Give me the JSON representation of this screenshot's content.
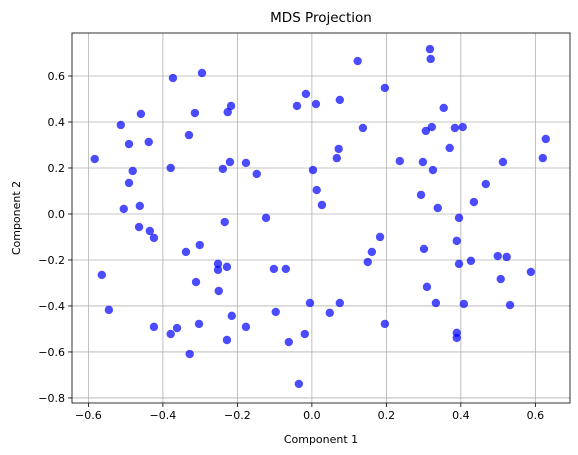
{
  "chart_data": {
    "type": "scatter",
    "title": "MDS Projection",
    "x_label": "Component 1",
    "y_label": "Component 2",
    "color": "#0000ff",
    "alpha": 0.7,
    "grid": true,
    "xlim": [
      -0.644,
      0.693
    ],
    "ylim": [
      -0.822,
      0.787
    ],
    "xticks": [
      {
        "value": -0.6,
        "label": "−0.6"
      },
      {
        "value": -0.4,
        "label": "−0.4"
      },
      {
        "value": -0.2,
        "label": "−0.2"
      },
      {
        "value": 0.0,
        "label": "0.0"
      },
      {
        "value": 0.2,
        "label": "0.2"
      },
      {
        "value": 0.4,
        "label": "0.4"
      },
      {
        "value": 0.6,
        "label": "0.6"
      }
    ],
    "yticks": [
      {
        "value": -0.8,
        "label": "−0.8"
      },
      {
        "value": -0.6,
        "label": "−0.6"
      },
      {
        "value": -0.4,
        "label": "−0.4"
      },
      {
        "value": -0.2,
        "label": "−0.2"
      },
      {
        "value": 0.0,
        "label": "0.0"
      },
      {
        "value": 0.2,
        "label": "0.2"
      },
      {
        "value": 0.4,
        "label": "0.4"
      },
      {
        "value": 0.6,
        "label": "0.6"
      }
    ],
    "x": [
      -0.583,
      -0.564,
      -0.545,
      -0.513,
      -0.505,
      -0.491,
      -0.491,
      -0.481,
      -0.459,
      -0.462,
      -0.464,
      -0.438,
      -0.435,
      -0.424,
      -0.424,
      -0.373,
      -0.379,
      -0.379,
      -0.362,
      -0.338,
      -0.33,
      -0.328,
      -0.314,
      -0.311,
      -0.301,
      -0.303,
      -0.295,
      -0.252,
      -0.252,
      -0.25,
      -0.239,
      -0.234,
      -0.228,
      -0.228,
      -0.226,
      -0.217,
      -0.22,
      -0.215,
      -0.177,
      -0.177,
      -0.148,
      -0.123,
      -0.102,
      -0.097,
      -0.07,
      -0.062,
      -0.04,
      -0.035,
      -0.016,
      -0.019,
      -0.005,
      0.003,
      0.011,
      0.013,
      0.027,
      0.048,
      0.067,
      0.072,
      0.075,
      0.075,
      0.123,
      0.137,
      0.15,
      0.161,
      0.183,
      0.196,
      0.196,
      0.236,
      0.293,
      0.298,
      0.301,
      0.306,
      0.309,
      0.317,
      0.319,
      0.322,
      0.325,
      0.333,
      0.338,
      0.354,
      0.37,
      0.384,
      0.389,
      0.389,
      0.389,
      0.395,
      0.395,
      0.405,
      0.408,
      0.427,
      0.435,
      0.467,
      0.499,
      0.507,
      0.513,
      0.523,
      0.532,
      0.588,
      0.62,
      0.628
    ],
    "values": [
      0.239,
      -0.265,
      -0.417,
      0.387,
      0.022,
      0.304,
      0.135,
      0.187,
      0.435,
      0.035,
      -0.057,
      0.313,
      -0.074,
      -0.104,
      -0.491,
      0.591,
      0.2,
      -0.522,
      -0.496,
      -0.165,
      0.343,
      -0.609,
      0.439,
      -0.296,
      -0.135,
      -0.478,
      0.613,
      -0.217,
      -0.243,
      -0.335,
      0.196,
      -0.035,
      -0.23,
      -0.548,
      0.443,
      0.47,
      0.226,
      -0.443,
      0.222,
      -0.491,
      0.174,
      -0.017,
      -0.239,
      -0.426,
      -0.239,
      -0.557,
      0.47,
      -0.739,
      0.522,
      -0.522,
      -0.387,
      0.191,
      0.478,
      0.104,
      0.039,
      -0.43,
      0.243,
      0.283,
      0.496,
      -0.387,
      0.665,
      0.374,
      -0.209,
      -0.165,
      -0.1,
      0.548,
      -0.478,
      0.23,
      0.083,
      0.226,
      -0.152,
      0.361,
      -0.317,
      0.717,
      0.674,
      0.378,
      0.191,
      -0.387,
      0.026,
      0.461,
      0.287,
      0.374,
      -0.117,
      -0.517,
      -0.539,
      -0.017,
      -0.217,
      0.378,
      -0.391,
      -0.204,
      0.052,
      0.13,
      -0.183,
      -0.283,
      0.226,
      -0.187,
      -0.396,
      -0.252,
      0.243,
      0.326
    ]
  }
}
